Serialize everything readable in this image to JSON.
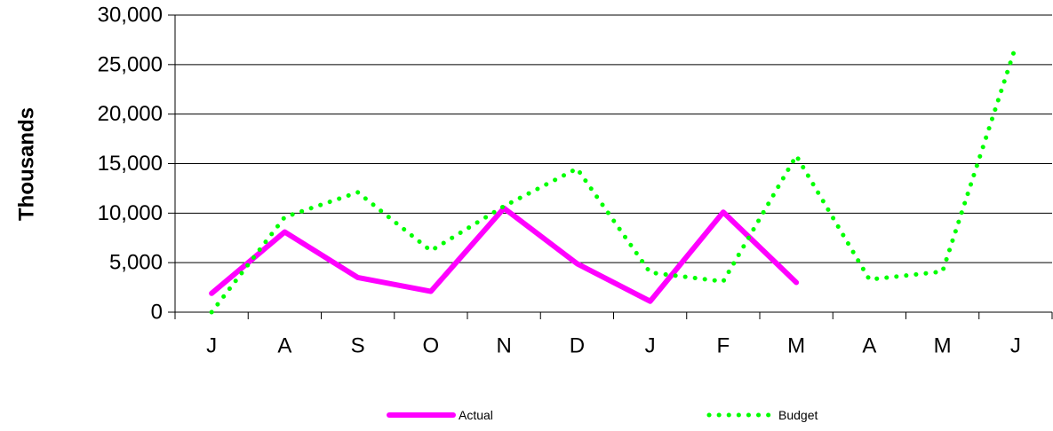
{
  "chart_data": {
    "type": "line",
    "title": "",
    "xlabel": "",
    "ylabel": "Thousands",
    "categories": [
      "J",
      "A",
      "S",
      "O",
      "N",
      "D",
      "J",
      "F",
      "M",
      "A",
      "M",
      "J"
    ],
    "ylim": [
      0,
      30000
    ],
    "yticks": [
      0,
      5000,
      10000,
      15000,
      20000,
      25000,
      30000
    ],
    "ytick_labels": [
      "0",
      "5,000",
      "10,000",
      "15,000",
      "20,000",
      "25,000",
      "30,000"
    ],
    "grid": "horizontal",
    "legend_position": "bottom",
    "series": [
      {
        "name": "Actual",
        "color": "#ff00ff",
        "style": "solid",
        "values": [
          1900,
          8100,
          3500,
          2100,
          10500,
          4900,
          1100,
          10100,
          3000,
          null,
          null,
          null
        ]
      },
      {
        "name": "Budget",
        "color": "#00ff00",
        "style": "dotted",
        "values": [
          0,
          9600,
          12100,
          6200,
          10700,
          14500,
          4000,
          3100,
          15800,
          3300,
          4100,
          26800
        ]
      }
    ]
  }
}
